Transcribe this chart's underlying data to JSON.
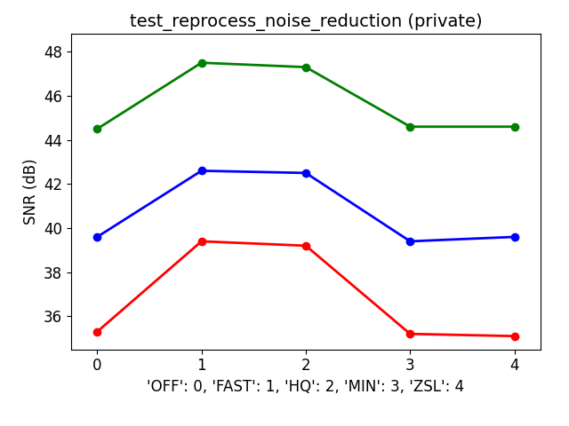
{
  "title": "test_reprocess_noise_reduction (private)",
  "xlabel": "'OFF': 0, 'FAST': 1, 'HQ': 2, 'MIN': 3, 'ZSL': 4",
  "ylabel": "SNR (dB)",
  "x": [
    0,
    1,
    2,
    3,
    4
  ],
  "lines": [
    {
      "color": "green",
      "values": [
        44.5,
        47.5,
        47.3,
        44.6,
        44.6
      ]
    },
    {
      "color": "blue",
      "values": [
        39.6,
        42.6,
        42.5,
        39.4,
        39.6
      ]
    },
    {
      "color": "red",
      "values": [
        35.3,
        39.4,
        39.2,
        35.2,
        35.1
      ]
    }
  ],
  "ylim": [
    34.5,
    48.8
  ],
  "yticks": [
    36,
    38,
    40,
    42,
    44,
    46,
    48
  ],
  "xticks": [
    0,
    1,
    2,
    3,
    4
  ],
  "xlim": [
    -0.25,
    4.25
  ],
  "marker": "o",
  "markersize": 6,
  "linewidth": 2,
  "title_fontsize": 14,
  "label_fontsize": 12,
  "tick_fontsize": 12,
  "figsize": [
    6.4,
    4.8
  ],
  "dpi": 100
}
